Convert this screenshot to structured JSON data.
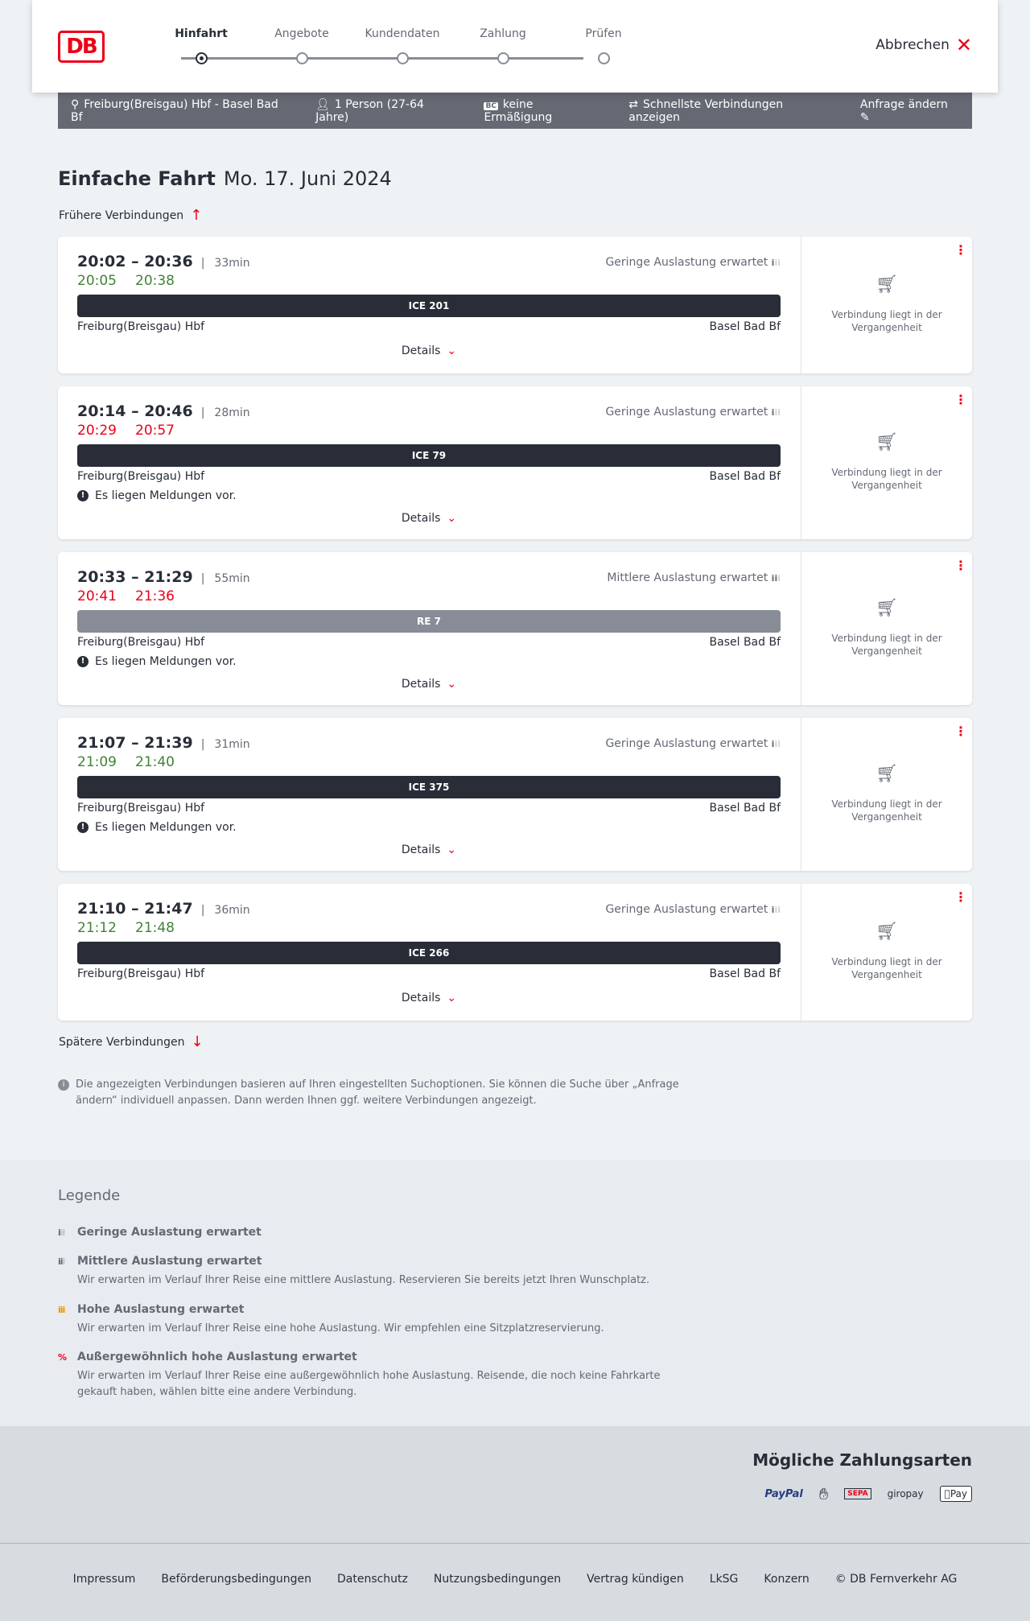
{
  "header": {
    "logo": "DB",
    "steps": [
      "Hinfahrt",
      "Angebote",
      "Kundendaten",
      "Zahlung",
      "Prüfen"
    ],
    "active_step": 0,
    "cancel": "Abbrechen"
  },
  "summary": {
    "route": "Freiburg(Breisgau) Hbf - Basel Bad Bf",
    "passengers": "1 Person (27-64 Jahre)",
    "discount_badge": "BC",
    "discount": "keine Ermäßigung",
    "option": "Schnellste Verbindungen anzeigen",
    "edit": "Anfrage ändern"
  },
  "title": {
    "trip": "Einfache Fahrt",
    "date": "Mo. 17. Juni 2024"
  },
  "earlier": "Frühere Verbindungen",
  "later": "Spätere Verbindungen",
  "connections": [
    {
      "times": "20:02 – 20:36",
      "duration": "33min",
      "rt_dep": "20:05",
      "rt_arr": "20:38",
      "rt_status": "ok",
      "load": "Geringe Auslastung erwartet",
      "train": "ICE 201",
      "train_type": "ice",
      "from": "Freiburg(Breisgau) Hbf",
      "to": "Basel Bad Bf",
      "message": "",
      "details": "Details",
      "status": "Verbindung liegt in der Vergangenheit"
    },
    {
      "times": "20:14 – 20:46",
      "duration": "28min",
      "rt_dep": "20:29",
      "rt_arr": "20:57",
      "rt_status": "late",
      "load": "Geringe Auslastung erwartet",
      "train": "ICE 79",
      "train_type": "ice",
      "from": "Freiburg(Breisgau) Hbf",
      "to": "Basel Bad Bf",
      "message": "Es liegen Meldungen vor.",
      "details": "Details",
      "status": "Verbindung liegt in der Vergangenheit"
    },
    {
      "times": "20:33 – 21:29",
      "duration": "55min",
      "rt_dep": "20:41",
      "rt_arr": "21:36",
      "rt_status": "late",
      "load": "Mittlere Auslastung erwartet",
      "train": "RE 7",
      "train_type": "re",
      "from": "Freiburg(Breisgau) Hbf",
      "to": "Basel Bad Bf",
      "message": "Es liegen Meldungen vor.",
      "details": "Details",
      "status": "Verbindung liegt in der Vergangenheit"
    },
    {
      "times": "21:07 – 21:39",
      "duration": "31min",
      "rt_dep": "21:09",
      "rt_arr": "21:40",
      "rt_status": "ok",
      "load": "Geringe Auslastung erwartet",
      "train": "ICE 375",
      "train_type": "ice",
      "from": "Freiburg(Breisgau) Hbf",
      "to": "Basel Bad Bf",
      "message": "Es liegen Meldungen vor.",
      "details": "Details",
      "status": "Verbindung liegt in der Vergangenheit"
    },
    {
      "times": "21:10 – 21:47",
      "duration": "36min",
      "rt_dep": "21:12",
      "rt_arr": "21:48",
      "rt_status": "ok",
      "load": "Geringe Auslastung erwartet",
      "train": "ICE 266",
      "train_type": "ice",
      "from": "Freiburg(Breisgau) Hbf",
      "to": "Basel Bad Bf",
      "message": "",
      "details": "Details",
      "status": "Verbindung liegt in der Vergangenheit"
    }
  ],
  "info": "Die angezeigten Verbindungen basieren auf Ihren eingestellten Suchoptionen. Sie können die Suche über „Anfrage ändern“ individuell anpassen. Dann werden Ihnen ggf. weitere Verbindungen angezeigt.",
  "legend": {
    "title": "Legende",
    "items": [
      {
        "label": "Geringe Auslastung erwartet",
        "text": "",
        "color": "#646973"
      },
      {
        "label": "Mittlere Auslastung erwartet",
        "text": "Wir erwarten im Verlauf Ihrer Reise eine mittlere Auslastung. Reservieren Sie bereits jetzt Ihren Wunschplatz.",
        "color": "#646973"
      },
      {
        "label": "Hohe Auslastung erwartet",
        "text": "Wir erwarten im Verlauf Ihrer Reise eine hohe Auslastung. Wir empfehlen eine Sitzplatzreservierung.",
        "color": "#f39200"
      },
      {
        "label": "Außergewöhnlich hohe Auslastung erwartet",
        "text": "Wir erwarten im Verlauf Ihrer Reise eine außergewöhnlich hohe Auslastung. Reisende, die noch keine Fahrkarte gekauft haben, wählen bitte eine andere Verbindung.",
        "color": "#ec0016"
      }
    ]
  },
  "payment": {
    "title": "Mögliche Zahlungsarten",
    "methods": [
      "PayPal",
      "SEPA",
      "giropay",
      "Pay"
    ]
  },
  "footer": [
    "Impressum",
    "Beförderungsbedingungen",
    "Datenschutz",
    "Nutzungsbedingungen",
    "Vertrag kündigen",
    "LkSG",
    "Konzern",
    "© DB Fernverkehr AG"
  ]
}
